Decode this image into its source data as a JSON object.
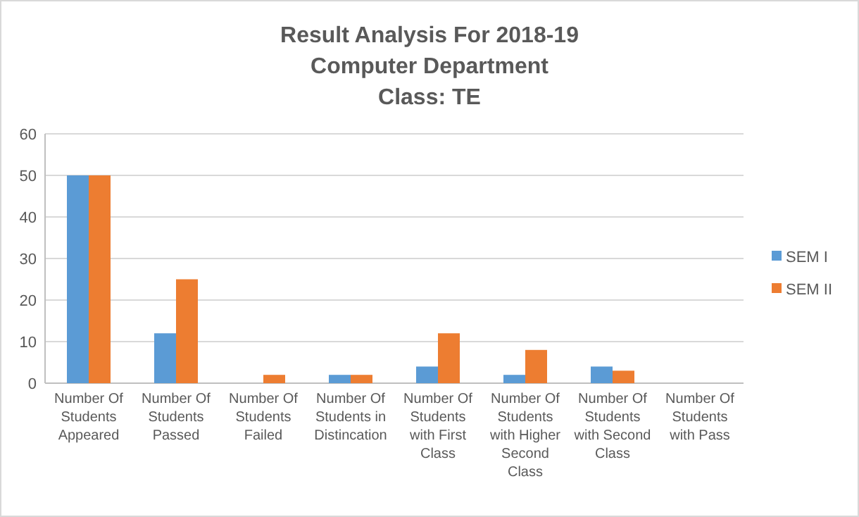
{
  "chart_data": {
    "type": "bar",
    "title": "Result Analysis For 2018-19\nComputer Department\nClass: TE",
    "categories": [
      "Number Of Students Appeared",
      "Number Of Students Passed",
      "Number Of Students Failed",
      "Number Of Students in Distincation",
      "Number Of Students with First Class",
      "Number Of Students with Higher Second Class",
      "Number Of Students with Second Class",
      "Number Of Students with Pass"
    ],
    "series": [
      {
        "name": "SEM I",
        "color": "#5b9bd5",
        "values": [
          50,
          12,
          0,
          2,
          4,
          2,
          4,
          0
        ]
      },
      {
        "name": "SEM II",
        "color": "#ed7d31",
        "values": [
          50,
          25,
          2,
          2,
          12,
          8,
          3,
          0
        ]
      }
    ],
    "ylim": [
      0,
      60
    ],
    "yticks": [
      0,
      10,
      20,
      30,
      40,
      50,
      60
    ],
    "grid": "y",
    "legend": "right"
  }
}
